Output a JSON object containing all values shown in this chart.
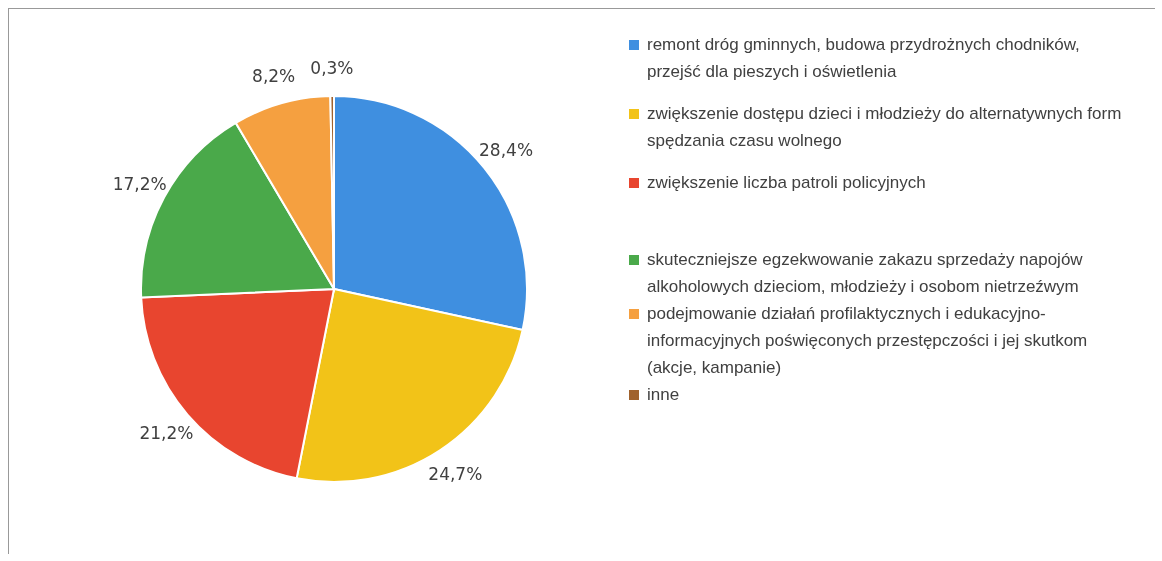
{
  "chart_data": {
    "type": "pie",
    "categories": [
      "remont dróg gminnych, budowa przydrożnych chodników, przejść dla pieszych i oświetlenia",
      "zwiększenie dostępu dzieci i młodzieży do alternatywnych form spędzania czasu wolnego",
      "zwiększenie liczba patroli policyjnych",
      "skuteczniejsze egzekwowanie zakazu sprzedaży napojów alkoholowych dzieciom, młodzieży i osobom nietrzeźwym",
      "podejmowanie działań profilaktycznych i edukacyjno-informacyjnych poświęconych przestępczości i jej skutkom (akcje, kampanie)",
      "inne"
    ],
    "values": [
      28.4,
      24.7,
      21.2,
      17.2,
      8.2,
      0.3
    ],
    "value_labels": [
      "28,4%",
      "24,7%",
      "21,2%",
      "17,2%",
      "8,2%",
      "0,3%"
    ],
    "colors": [
      "#3f8fe0",
      "#f2c318",
      "#e8452f",
      "#4aa94a",
      "#f5a040",
      "#a0622d"
    ],
    "legend": "right"
  }
}
